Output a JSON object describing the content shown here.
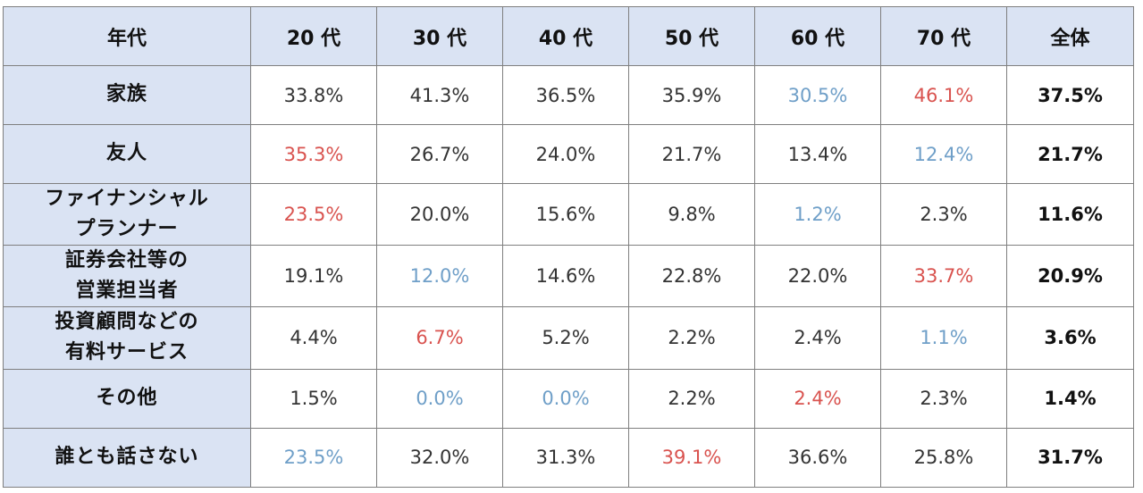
{
  "colors": {
    "header_bg": "#dae3f3",
    "high": "#d9534f",
    "low": "#6f9fc8",
    "normal": "#333333"
  },
  "header": [
    "年代",
    "20 代",
    "30 代",
    "40 代",
    "50 代",
    "60 代",
    "70 代",
    "全体"
  ],
  "rows": [
    {
      "label": [
        "家族"
      ],
      "values": [
        {
          "v": "33.8%",
          "s": "normal"
        },
        {
          "v": "41.3%",
          "s": "normal"
        },
        {
          "v": "36.5%",
          "s": "normal"
        },
        {
          "v": "35.9%",
          "s": "normal"
        },
        {
          "v": "30.5%",
          "s": "low"
        },
        {
          "v": "46.1%",
          "s": "high"
        }
      ],
      "total": "37.5%"
    },
    {
      "label": [
        "友人"
      ],
      "values": [
        {
          "v": "35.3%",
          "s": "high"
        },
        {
          "v": "26.7%",
          "s": "normal"
        },
        {
          "v": "24.0%",
          "s": "normal"
        },
        {
          "v": "21.7%",
          "s": "normal"
        },
        {
          "v": "13.4%",
          "s": "normal"
        },
        {
          "v": "12.4%",
          "s": "low"
        }
      ],
      "total": "21.7%"
    },
    {
      "label": [
        "ファイナンシャル",
        "プランナー"
      ],
      "values": [
        {
          "v": "23.5%",
          "s": "high"
        },
        {
          "v": "20.0%",
          "s": "normal"
        },
        {
          "v": "15.6%",
          "s": "normal"
        },
        {
          "v": "9.8%",
          "s": "normal"
        },
        {
          "v": "1.2%",
          "s": "low"
        },
        {
          "v": "2.3%",
          "s": "normal"
        }
      ],
      "total": "11.6%"
    },
    {
      "label": [
        "証券会社等の",
        "営業担当者"
      ],
      "values": [
        {
          "v": "19.1%",
          "s": "normal"
        },
        {
          "v": "12.0%",
          "s": "low"
        },
        {
          "v": "14.6%",
          "s": "normal"
        },
        {
          "v": "22.8%",
          "s": "normal"
        },
        {
          "v": "22.0%",
          "s": "normal"
        },
        {
          "v": "33.7%",
          "s": "high"
        }
      ],
      "total": "20.9%"
    },
    {
      "label": [
        "投資顧問などの",
        "有料サービス"
      ],
      "values": [
        {
          "v": "4.4%",
          "s": "normal"
        },
        {
          "v": "6.7%",
          "s": "high"
        },
        {
          "v": "5.2%",
          "s": "normal"
        },
        {
          "v": "2.2%",
          "s": "normal"
        },
        {
          "v": "2.4%",
          "s": "normal"
        },
        {
          "v": "1.1%",
          "s": "low"
        }
      ],
      "total": "3.6%"
    },
    {
      "label": [
        "その他"
      ],
      "values": [
        {
          "v": "1.5%",
          "s": "normal"
        },
        {
          "v": "0.0%",
          "s": "low"
        },
        {
          "v": "0.0%",
          "s": "low"
        },
        {
          "v": "2.2%",
          "s": "normal"
        },
        {
          "v": "2.4%",
          "s": "high"
        },
        {
          "v": "2.3%",
          "s": "normal"
        }
      ],
      "total": "1.4%"
    },
    {
      "label": [
        "誰とも話さない"
      ],
      "values": [
        {
          "v": "23.5%",
          "s": "low"
        },
        {
          "v": "32.0%",
          "s": "normal"
        },
        {
          "v": "31.3%",
          "s": "normal"
        },
        {
          "v": "39.1%",
          "s": "high"
        },
        {
          "v": "36.6%",
          "s": "normal"
        },
        {
          "v": "25.8%",
          "s": "normal"
        }
      ],
      "total": "31.7%"
    }
  ]
}
